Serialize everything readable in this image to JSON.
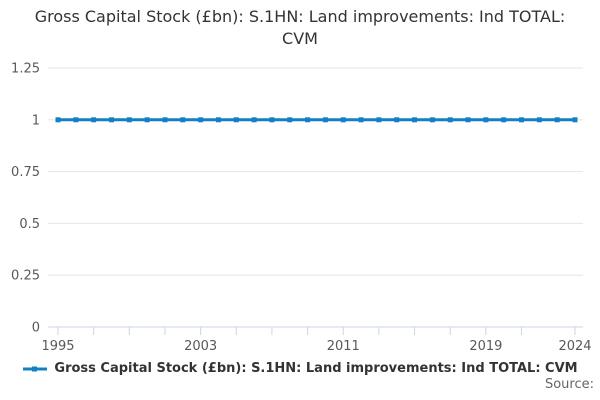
{
  "title": "Gross Capital Stock (£bn): S.1HN: Land improvements: Ind TOTAL: CVM",
  "legend": {
    "label": "Gross Capital Stock (£bn): S.1HN: Land improvements: Ind TOTAL: CVM"
  },
  "source_label": "Source:",
  "colors": {
    "series": "#1380C4",
    "grid": "#e6e6e6",
    "axis": "#ccd5e6",
    "axis_text": "#595959",
    "title_text": "#333333",
    "source_text": "#666666"
  },
  "chart_data": {
    "type": "line",
    "title": "Gross Capital Stock (£bn): S.1HN: Land improvements: Ind TOTAL: CVM",
    "xlabel": "",
    "ylabel": "",
    "x": [
      1995,
      1996,
      1997,
      1998,
      1999,
      2000,
      2001,
      2002,
      2003,
      2004,
      2005,
      2006,
      2007,
      2008,
      2009,
      2010,
      2011,
      2012,
      2013,
      2014,
      2015,
      2016,
      2017,
      2018,
      2019,
      2020,
      2021,
      2022,
      2023,
      2024
    ],
    "series": [
      {
        "name": "Gross Capital Stock (£bn): S.1HN: Land improvements: Ind TOTAL: CVM",
        "values": [
          1,
          1,
          1,
          1,
          1,
          1,
          1,
          1,
          1,
          1,
          1,
          1,
          1,
          1,
          1,
          1,
          1,
          1,
          1,
          1,
          1,
          1,
          1,
          1,
          1,
          1,
          1,
          1,
          1,
          1
        ]
      }
    ],
    "ylim": [
      0,
      1.25
    ],
    "y_ticks": [
      0,
      0.25,
      0.5,
      0.75,
      1,
      1.25
    ],
    "x_tick_labels": [
      1995,
      2003,
      2011,
      2019,
      2024
    ],
    "x_minor_ticks": [
      1995,
      1997,
      1999,
      2001,
      2003,
      2005,
      2007,
      2009,
      2011,
      2013,
      2015,
      2017,
      2019,
      2021,
      2024
    ],
    "grid": "horizontal",
    "legend_position": "bottom",
    "marker": "square"
  }
}
